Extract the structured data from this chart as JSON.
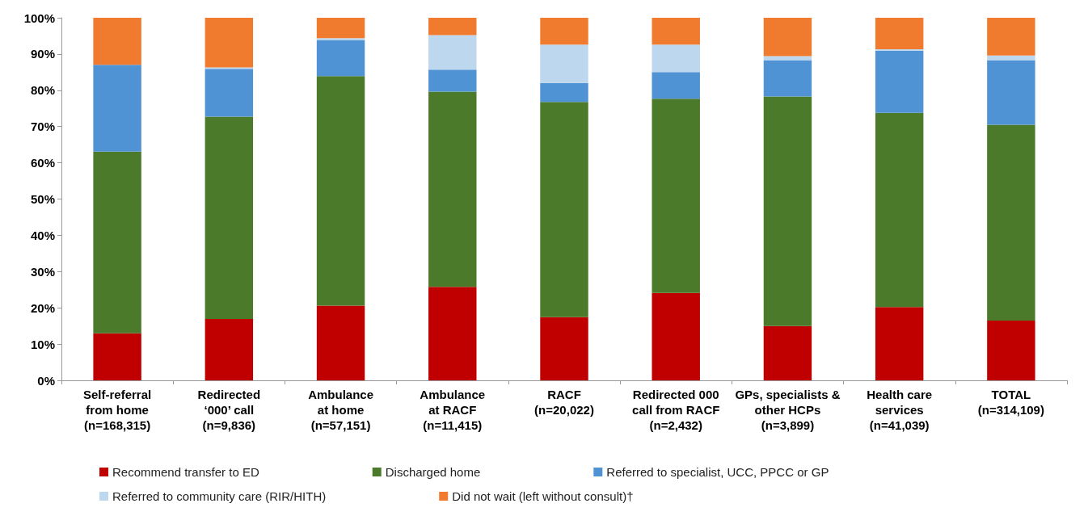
{
  "chart_data": {
    "type": "bar",
    "stacked": true,
    "categories": [
      "Self-referral\nfrom home\n(n=168,315)",
      "Redirected\n‘000’ call\n(n=9,836)",
      "Ambulance\nat home\n(n=57,151)",
      "Ambulance\nat RACF\n(n=11,415)",
      "RACF\n(n=20,022)",
      "Redirected 000\ncall from RACF\n(n=2,432)",
      "GPs, specialists &\nother HCPs\n(n=3,899)",
      "Health care\nservices\n(n=41,039)",
      "TOTAL\n(n=314,109)"
    ],
    "series": [
      {
        "name": "Recommend transfer to ED",
        "color": "#c00000",
        "values": [
          13.0,
          16.9,
          20.6,
          25.8,
          17.4,
          24.1,
          15.0,
          20.2,
          16.5
        ]
      },
      {
        "name": "Discharged home",
        "color": "#4a7a2a",
        "values": [
          50.1,
          55.8,
          63.3,
          53.8,
          59.4,
          53.6,
          63.3,
          53.6,
          54.0
        ]
      },
      {
        "name": "Referred to specialist, UCC, PPCC or GP",
        "color": "#5093d5",
        "values": [
          23.9,
          13.2,
          10.0,
          6.1,
          5.2,
          7.3,
          10.0,
          17.1,
          17.8
        ]
      },
      {
        "name": "Referred to community care (RIR/HITH)",
        "color": "#bdd7ee",
        "values": [
          null,
          0.4,
          0.5,
          9.5,
          10.6,
          7.6,
          1.1,
          0.4,
          1.3
        ]
      },
      {
        "name": "Did not wait (left without consult)†",
        "color": "#f07b2e",
        "values": [
          13.0,
          13.7,
          5.6,
          4.8,
          7.4,
          7.4,
          10.6,
          8.7,
          10.4
        ]
      }
    ],
    "ylim": [
      0,
      100
    ],
    "yticks": [
      {
        "value": 0,
        "label": "0%"
      },
      {
        "value": 10,
        "label": "10%"
      },
      {
        "value": 20,
        "label": "20%"
      },
      {
        "value": 30,
        "label": "30%"
      },
      {
        "value": 40,
        "label": "40%"
      },
      {
        "value": 50,
        "label": "50%"
      },
      {
        "value": 60,
        "label": "60%"
      },
      {
        "value": 70,
        "label": "70%"
      },
      {
        "value": 80,
        "label": "80%"
      },
      {
        "value": 90,
        "label": "90%"
      },
      {
        "value": 100,
        "label": "100%"
      }
    ],
    "grid": false,
    "legend": "bottom"
  }
}
